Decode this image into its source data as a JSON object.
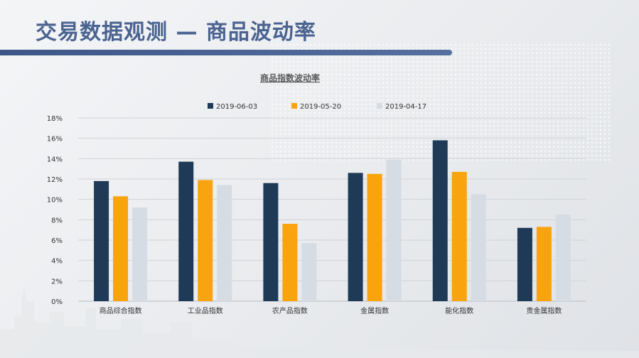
{
  "slide": {
    "title": "交易数据观测 — 商品波动率"
  },
  "colors": {
    "title": "#4a6390",
    "title_bar": "#4a6390",
    "series": [
      "#1f3a56",
      "#f9a30e",
      "#d6dce3"
    ],
    "axis_text": "#333333",
    "grid": "#d0d3d8"
  },
  "chart_data": {
    "type": "bar",
    "title": "商品指数波动率",
    "categories": [
      "商品综合指数",
      "工业品指数",
      "农产品指数",
      "金属指数",
      "能化指数",
      "贵金属指数"
    ],
    "series": [
      {
        "name": "2019-06-03",
        "values": [
          11.8,
          13.7,
          11.6,
          12.6,
          15.8,
          7.2
        ]
      },
      {
        "name": "2019-05-20",
        "values": [
          10.3,
          11.9,
          7.6,
          12.5,
          12.7,
          7.3
        ]
      },
      {
        "name": "2019-04-17",
        "values": [
          9.2,
          11.4,
          5.7,
          13.9,
          10.5,
          8.5
        ]
      }
    ],
    "y_ticks": [
      "0%",
      "2%",
      "4%",
      "6%",
      "8%",
      "10%",
      "12%",
      "14%",
      "16%",
      "18%"
    ],
    "ylim": [
      0,
      18
    ],
    "grid": true,
    "legend_position": "top"
  }
}
